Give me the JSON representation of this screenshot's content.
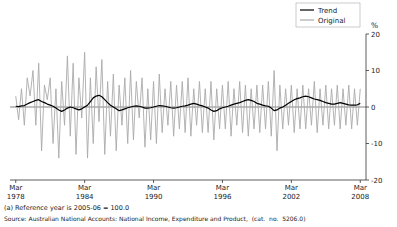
{
  "chart_data": {
    "type": "line",
    "y_label": "%",
    "annotations": [
      "(a) Reference year is 2005-06 = 100.0",
      "Source: Australian National Accounts: National Income, Expenditure and Product,  (cat.  no.  5206.0)"
    ],
    "legend": "upper right",
    "grid": false,
    "ylim": [
      -20,
      20
    ],
    "yticks": [
      -20,
      -10,
      0,
      10,
      20
    ],
    "categories": [
      "Mar\n1978",
      null,
      null,
      null,
      null,
      null,
      null,
      null,
      null,
      null,
      null,
      null,
      null,
      null,
      null,
      null,
      null,
      null,
      null,
      null,
      null,
      null,
      null,
      null,
      "Mar\n1984",
      null,
      null,
      null,
      null,
      null,
      null,
      null,
      null,
      null,
      null,
      null,
      null,
      null,
      null,
      null,
      null,
      null,
      null,
      null,
      null,
      null,
      null,
      null,
      "Mar\n1990",
      null,
      null,
      null,
      null,
      null,
      null,
      null,
      null,
      null,
      null,
      null,
      null,
      null,
      null,
      null,
      null,
      null,
      null,
      null,
      null,
      null,
      null,
      null,
      "Mar\n1996",
      null,
      null,
      null,
      null,
      null,
      null,
      null,
      null,
      null,
      null,
      null,
      null,
      null,
      null,
      null,
      null,
      null,
      null,
      null,
      null,
      null,
      null,
      null,
      "Mar\n2002",
      null,
      null,
      null,
      null,
      null,
      null,
      null,
      null,
      null,
      null,
      null,
      null,
      null,
      null,
      null,
      null,
      null,
      null,
      null,
      null,
      null,
      null,
      null,
      "Mar\n2008"
    ],
    "series": [
      {
        "name": "Original",
        "color": "#aaaaaa",
        "values": [
          3.0,
          -3.5,
          5.0,
          -5.0,
          8.0,
          3.0,
          10.0,
          -5.0,
          12.0,
          -12.0,
          6.0,
          2.0,
          8.0,
          -10.0,
          5.0,
          -14.0,
          7.0,
          -5.0,
          14.0,
          -8.0,
          12.0,
          -13.0,
          8.0,
          -3.0,
          15.0,
          -14.0,
          8.0,
          -10.0,
          11.0,
          -4.0,
          13.0,
          -13.0,
          7.0,
          -8.0,
          9.0,
          -12.0,
          6.0,
          -5.0,
          8.0,
          -10.0,
          10.0,
          -9.0,
          7.0,
          -3.0,
          8.0,
          -11.0,
          5.0,
          -9.0,
          7.0,
          -10.0,
          9.0,
          -7.0,
          5.0,
          -5.0,
          7.0,
          -8.0,
          6.0,
          -6.0,
          7.0,
          -7.0,
          8.0,
          -8.0,
          5.0,
          -5.0,
          7.0,
          -7.0,
          5.0,
          -7.0,
          7.0,
          -9.0,
          5.0,
          -6.0,
          6.0,
          -6.0,
          7.0,
          -8.0,
          5.0,
          -5.0,
          7.0,
          -7.0,
          6.0,
          -8.0,
          5.0,
          -6.0,
          6.0,
          -7.0,
          6.0,
          -6.0,
          7.0,
          -8.0,
          10.0,
          -12.0,
          6.0,
          -6.0,
          5.0,
          -5.0,
          6.0,
          -7.0,
          5.0,
          -6.0,
          6.0,
          -6.0,
          5.0,
          -5.0,
          7.0,
          -7.0,
          5.0,
          -5.0,
          6.0,
          -6.0,
          5.0,
          -5.0,
          6.0,
          -6.0,
          5.0,
          -5.0,
          6.0,
          -6.0,
          5.0,
          -5.0,
          5.0
        ]
      },
      {
        "name": "Trend",
        "color": "#000000",
        "values": [
          0.2,
          0.1,
          0.3,
          0.4,
          0.8,
          1.2,
          1.5,
          1.8,
          2.0,
          1.5,
          1.2,
          0.8,
          0.5,
          0.2,
          -0.3,
          -0.8,
          -1.2,
          -0.8,
          -0.3,
          0.0,
          -0.2,
          -0.5,
          -0.8,
          -0.5,
          0.0,
          0.5,
          1.5,
          2.5,
          3.0,
          3.2,
          2.8,
          2.0,
          1.2,
          0.5,
          0.0,
          -0.5,
          -1.0,
          -0.8,
          -0.5,
          -0.2,
          0.0,
          0.2,
          0.3,
          0.2,
          0.0,
          -0.3,
          -0.3,
          -0.2,
          0.0,
          0.2,
          0.4,
          0.3,
          0.2,
          0.0,
          -0.2,
          -0.3,
          -0.2,
          0.0,
          0.2,
          0.3,
          0.5,
          0.8,
          1.0,
          0.8,
          0.5,
          0.3,
          0.0,
          -0.3,
          -0.8,
          -1.2,
          -1.0,
          -0.5,
          -0.2,
          0.0,
          0.2,
          0.5,
          0.8,
          1.0,
          1.2,
          1.5,
          1.8,
          2.0,
          1.8,
          1.5,
          1.0,
          0.8,
          0.5,
          0.3,
          0.2,
          -0.3,
          -1.0,
          -0.8,
          -0.3,
          0.0,
          0.5,
          1.0,
          1.5,
          2.0,
          2.3,
          2.5,
          2.8,
          3.0,
          2.8,
          2.5,
          2.2,
          2.0,
          1.8,
          1.5,
          1.2,
          1.0,
          0.8,
          0.8,
          1.0,
          1.2,
          1.0,
          0.8,
          0.6,
          0.5,
          0.5,
          0.6,
          1.0
        ]
      }
    ]
  }
}
